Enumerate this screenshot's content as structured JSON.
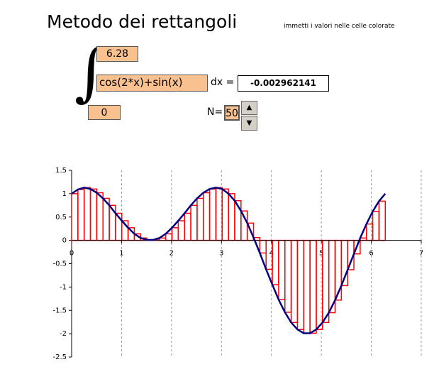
{
  "header": {
    "title": "Metodo dei rettangoli",
    "note": "immetti i valori nelle celle colorate"
  },
  "integral": {
    "upper": "6.28",
    "function": "cos(2*x)+sin(x)",
    "dx_label": "dx =",
    "result": "-0.002962141",
    "lower": "0",
    "n_label": "N=",
    "n": "50"
  },
  "chart_data": {
    "type": "histogram",
    "bins": [
      0,
      0.1256,
      0.2512,
      0.3768,
      0.5024,
      0.628,
      0.7536,
      0.8792,
      1.0048,
      1.1304,
      1.256,
      1.3816,
      1.5072,
      1.6328,
      1.7584,
      1.884,
      2.0096,
      2.1352,
      2.2608,
      2.3864,
      2.512,
      2.6376,
      2.7632,
      2.8888,
      3.0144,
      3.14,
      3.2656,
      3.3912,
      3.5168,
      3.6424,
      3.768,
      3.8936,
      4.0192,
      4.1448,
      4.2704,
      4.396,
      4.5216,
      4.6472,
      4.7728,
      4.8984,
      5.024,
      5.1496,
      5.2752,
      5.4008,
      5.5264,
      5.652,
      5.7776,
      5.9032,
      6.0288,
      6.1544,
      6.28
    ],
    "values": [
      1.0,
      1.09,
      1.13,
      1.1,
      1.02,
      0.9,
      0.75,
      0.58,
      0.42,
      0.27,
      0.14,
      0.05,
      0.01,
      0.01,
      0.05,
      0.14,
      0.27,
      0.42,
      0.58,
      0.75,
      0.9,
      1.02,
      1.1,
      1.13,
      1.1,
      1.0,
      0.85,
      0.63,
      0.37,
      0.06,
      -0.27,
      -0.62,
      -0.95,
      -1.27,
      -1.54,
      -1.76,
      -1.91,
      -1.99,
      -1.99,
      -1.91,
      -1.76,
      -1.55,
      -1.28,
      -0.97,
      -0.63,
      -0.29,
      0.05,
      0.35,
      0.62,
      0.84
    ],
    "color": "#ff0000",
    "line": {
      "color": "#000080",
      "values": [
        1.0,
        1.09,
        1.13,
        1.1,
        1.02,
        0.9,
        0.75,
        0.58,
        0.42,
        0.27,
        0.14,
        0.05,
        0.01,
        0.01,
        0.05,
        0.14,
        0.27,
        0.42,
        0.58,
        0.75,
        0.9,
        1.02,
        1.1,
        1.13,
        1.1,
        1.0,
        0.85,
        0.63,
        0.37,
        0.06,
        -0.27,
        -0.62,
        -0.95,
        -1.27,
        -1.54,
        -1.76,
        -1.91,
        -1.99,
        -1.99,
        -1.91,
        -1.76,
        -1.55,
        -1.28,
        -0.97,
        -0.63,
        -0.29,
        0.05,
        0.35,
        0.62,
        0.84,
        1.0
      ]
    },
    "xlim": [
      0,
      7
    ],
    "xticks": [
      0,
      1,
      2,
      3,
      4,
      5,
      6,
      7
    ],
    "ylim": [
      -2.5,
      1.5
    ],
    "yticks": [
      1.5,
      1,
      0.5,
      0,
      -0.5,
      -1,
      -1.5,
      -2,
      -2.5
    ],
    "grid": true
  }
}
